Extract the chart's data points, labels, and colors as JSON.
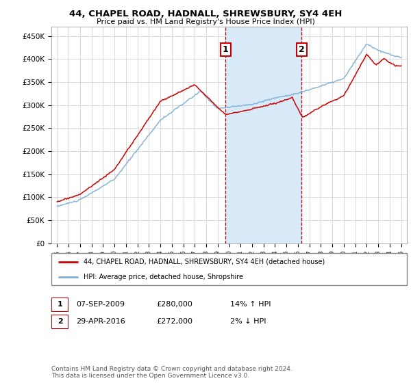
{
  "title": "44, CHAPEL ROAD, HADNALL, SHREWSBURY, SY4 4EH",
  "subtitle": "Price paid vs. HM Land Registry's House Price Index (HPI)",
  "legend_line1": "44, CHAPEL ROAD, HADNALL, SHREWSBURY, SY4 4EH (detached house)",
  "legend_line2": "HPI: Average price, detached house, Shropshire",
  "annotation1_label": "1",
  "annotation1_date": "07-SEP-2009",
  "annotation1_price": "£280,000",
  "annotation1_hpi": "14% ↑ HPI",
  "annotation2_label": "2",
  "annotation2_date": "29-APR-2016",
  "annotation2_price": "£272,000",
  "annotation2_hpi": "2% ↓ HPI",
  "footer": "Contains HM Land Registry data © Crown copyright and database right 2024.\nThis data is licensed under the Open Government Licence v3.0.",
  "sale1_year": 2009.69,
  "sale1_price": 280000,
  "sale2_year": 2016.33,
  "sale2_price": 272000,
  "hpi_color": "#7aadd4",
  "price_color": "#cc0000",
  "annotation_box_color": "#cc0000",
  "shade_color": "#d8eaf7",
  "ylim": [
    0,
    470000
  ],
  "yticks": [
    0,
    50000,
    100000,
    150000,
    200000,
    250000,
    300000,
    350000,
    400000,
    450000
  ],
  "ytick_labels": [
    "£0",
    "£50K",
    "£100K",
    "£150K",
    "£200K",
    "£250K",
    "£300K",
    "£350K",
    "£400K",
    "£450K"
  ],
  "xlim_start": 1994.5,
  "xlim_end": 2025.5
}
